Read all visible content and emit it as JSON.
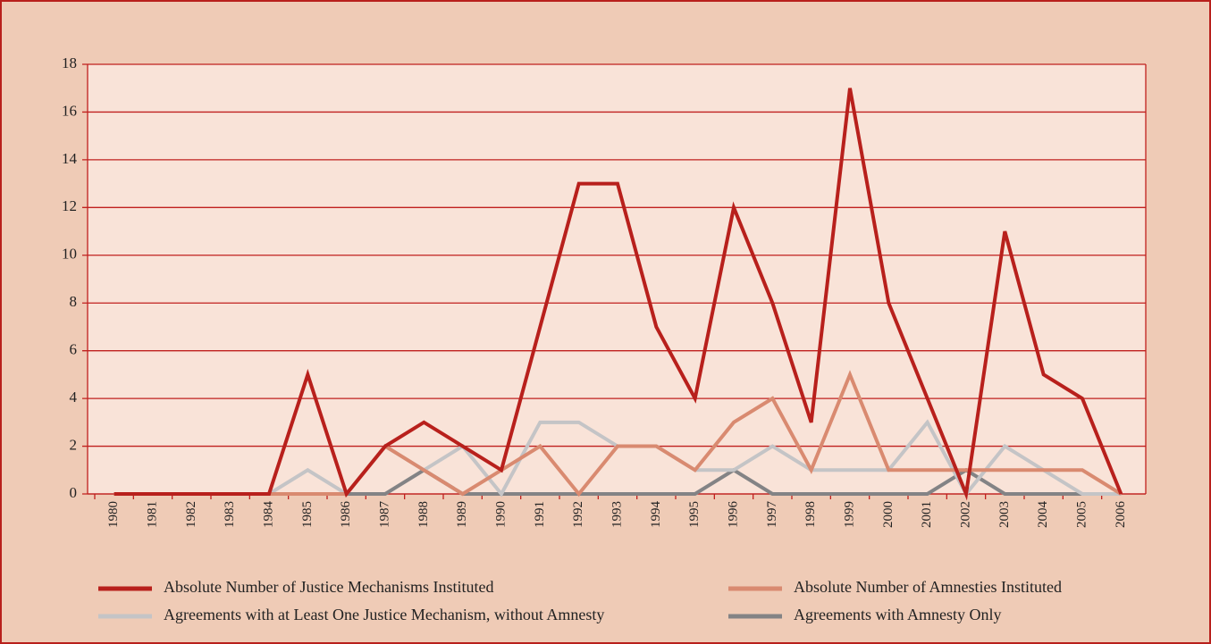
{
  "chart_data": {
    "type": "line",
    "categories": [
      "1980",
      "1981",
      "1982",
      "1983",
      "1984",
      "1985",
      "1986",
      "1987",
      "1988",
      "1989",
      "1990",
      "1991",
      "1992",
      "1993",
      "1994",
      "1995",
      "1996",
      "1997",
      "1998",
      "1999",
      "2000",
      "2001",
      "2002",
      "2003",
      "2004",
      "2005",
      "2006"
    ],
    "series": [
      {
        "name": "Absolute Number of Justice Mechanisms Instituted",
        "color": "#b8201c",
        "values": [
          0,
          0,
          0,
          0,
          0,
          5,
          0,
          2,
          3,
          2,
          1,
          7,
          13,
          13,
          7,
          4,
          12,
          8,
          3,
          17,
          8,
          4,
          0,
          11,
          5,
          4,
          0
        ]
      },
      {
        "name": "Absolute Number of Amnesties Instituted",
        "color": "#d98a70",
        "values": [
          0,
          0,
          0,
          0,
          0,
          0,
          0,
          2,
          1,
          0,
          1,
          2,
          0,
          2,
          2,
          1,
          3,
          4,
          1,
          5,
          1,
          1,
          1,
          1,
          1,
          1,
          0
        ]
      },
      {
        "name": "Agreements with at Least One Justice Mechanism, without Amnesty",
        "color": "#c4c4c6",
        "values": [
          0,
          0,
          0,
          0,
          0,
          1,
          0,
          2,
          1,
          2,
          0,
          3,
          3,
          2,
          2,
          1,
          1,
          2,
          1,
          1,
          1,
          3,
          0,
          2,
          1,
          0,
          0
        ]
      },
      {
        "name": "Agreements with Amnesty Only",
        "color": "#838385",
        "values": [
          0,
          0,
          0,
          0,
          0,
          0,
          0,
          0,
          1,
          0,
          0,
          0,
          0,
          0,
          0,
          0,
          1,
          0,
          0,
          0,
          0,
          0,
          1,
          0,
          0,
          0,
          0
        ]
      }
    ],
    "ylim": [
      0,
      18
    ],
    "yticks": [
      0,
      2,
      4,
      6,
      8,
      10,
      12,
      14,
      16,
      18
    ],
    "grid": true
  }
}
